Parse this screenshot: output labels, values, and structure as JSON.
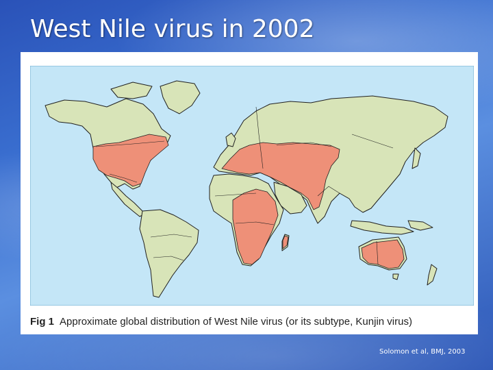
{
  "slide": {
    "title": "West Nile virus in 2002",
    "citation": "Solomon et al, BMJ, 2003"
  },
  "figure": {
    "label": "Fig 1",
    "caption": "Approximate global distribution of West Nile virus (or its subtype, Kunjin virus)"
  },
  "map": {
    "colors": {
      "ocean": "#c4e6f7",
      "land": "#d8e4b8",
      "virus_area": "#ee9078",
      "border": "#1f1f1f"
    },
    "regions_with_virus": [
      "United States",
      "Southern Europe",
      "Middle East",
      "Africa",
      "Central Asia",
      "India",
      "Australia"
    ]
  }
}
